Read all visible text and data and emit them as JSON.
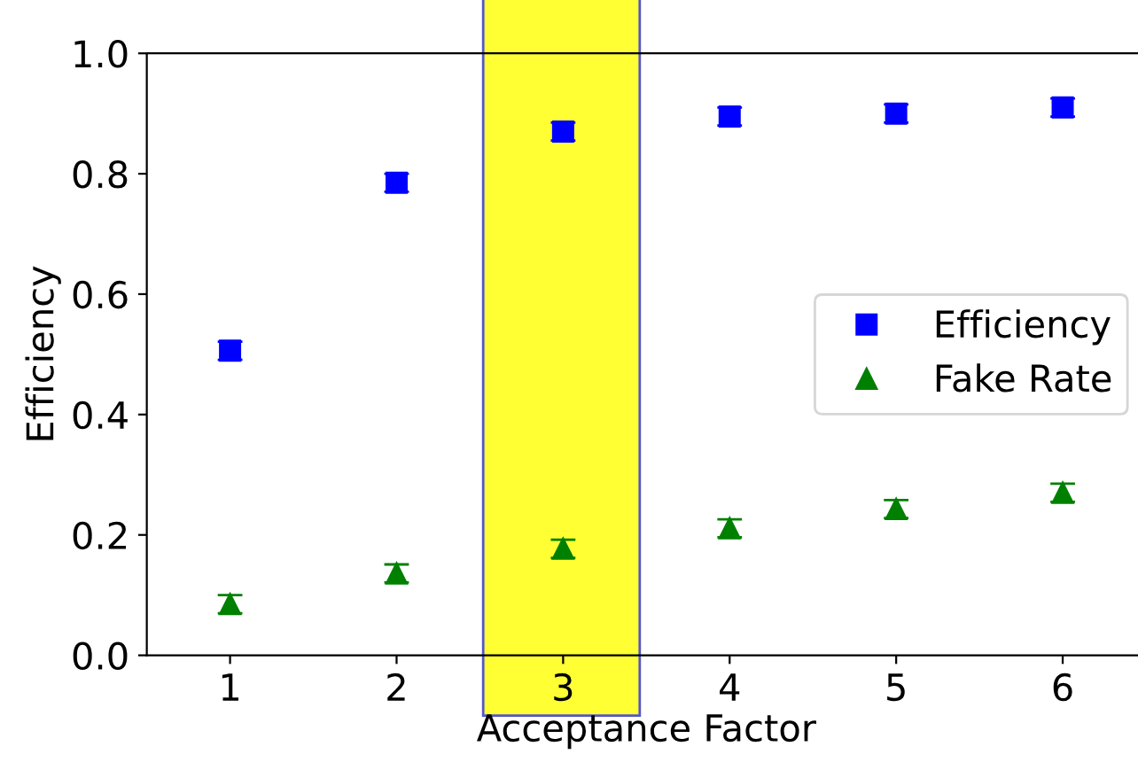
{
  "chart_data": {
    "type": "scatter",
    "xlabel": "Acceptance Factor",
    "ylabel": "Efficiency",
    "x": [
      1,
      2,
      3,
      4,
      5,
      6
    ],
    "series": [
      {
        "name": "Efficiency",
        "color": "#0000ff",
        "marker": "square",
        "values": [
          0.506,
          0.785,
          0.87,
          0.895,
          0.9,
          0.91
        ],
        "errors": [
          0.015,
          0.015,
          0.015,
          0.015,
          0.015,
          0.015
        ]
      },
      {
        "name": "Fake Rate",
        "color": "#008000",
        "marker": "triangle",
        "values": [
          0.085,
          0.136,
          0.177,
          0.211,
          0.243,
          0.27
        ],
        "errors": [
          0.015,
          0.015,
          0.015,
          0.015,
          0.015,
          0.015
        ]
      }
    ],
    "bands": [
      {
        "axis": "x",
        "from": 2.52,
        "to": 3.46,
        "color": "#ffff33"
      }
    ],
    "xlim": [
      0.5,
      6.5
    ],
    "ylim": [
      0,
      1.0
    ],
    "xticks": [
      1,
      2,
      3,
      4,
      5,
      6
    ],
    "yticks": [
      {
        "value": 0,
        "label": "0.0"
      },
      {
        "value": 0.2,
        "label": "0.2"
      },
      {
        "value": 0.4,
        "label": "0.4"
      },
      {
        "value": 0.6,
        "label": "0.6"
      },
      {
        "value": 0.8,
        "label": "0.8"
      },
      {
        "value": 1.0,
        "label": "1.0"
      }
    ],
    "grid": false,
    "legend": "right"
  }
}
